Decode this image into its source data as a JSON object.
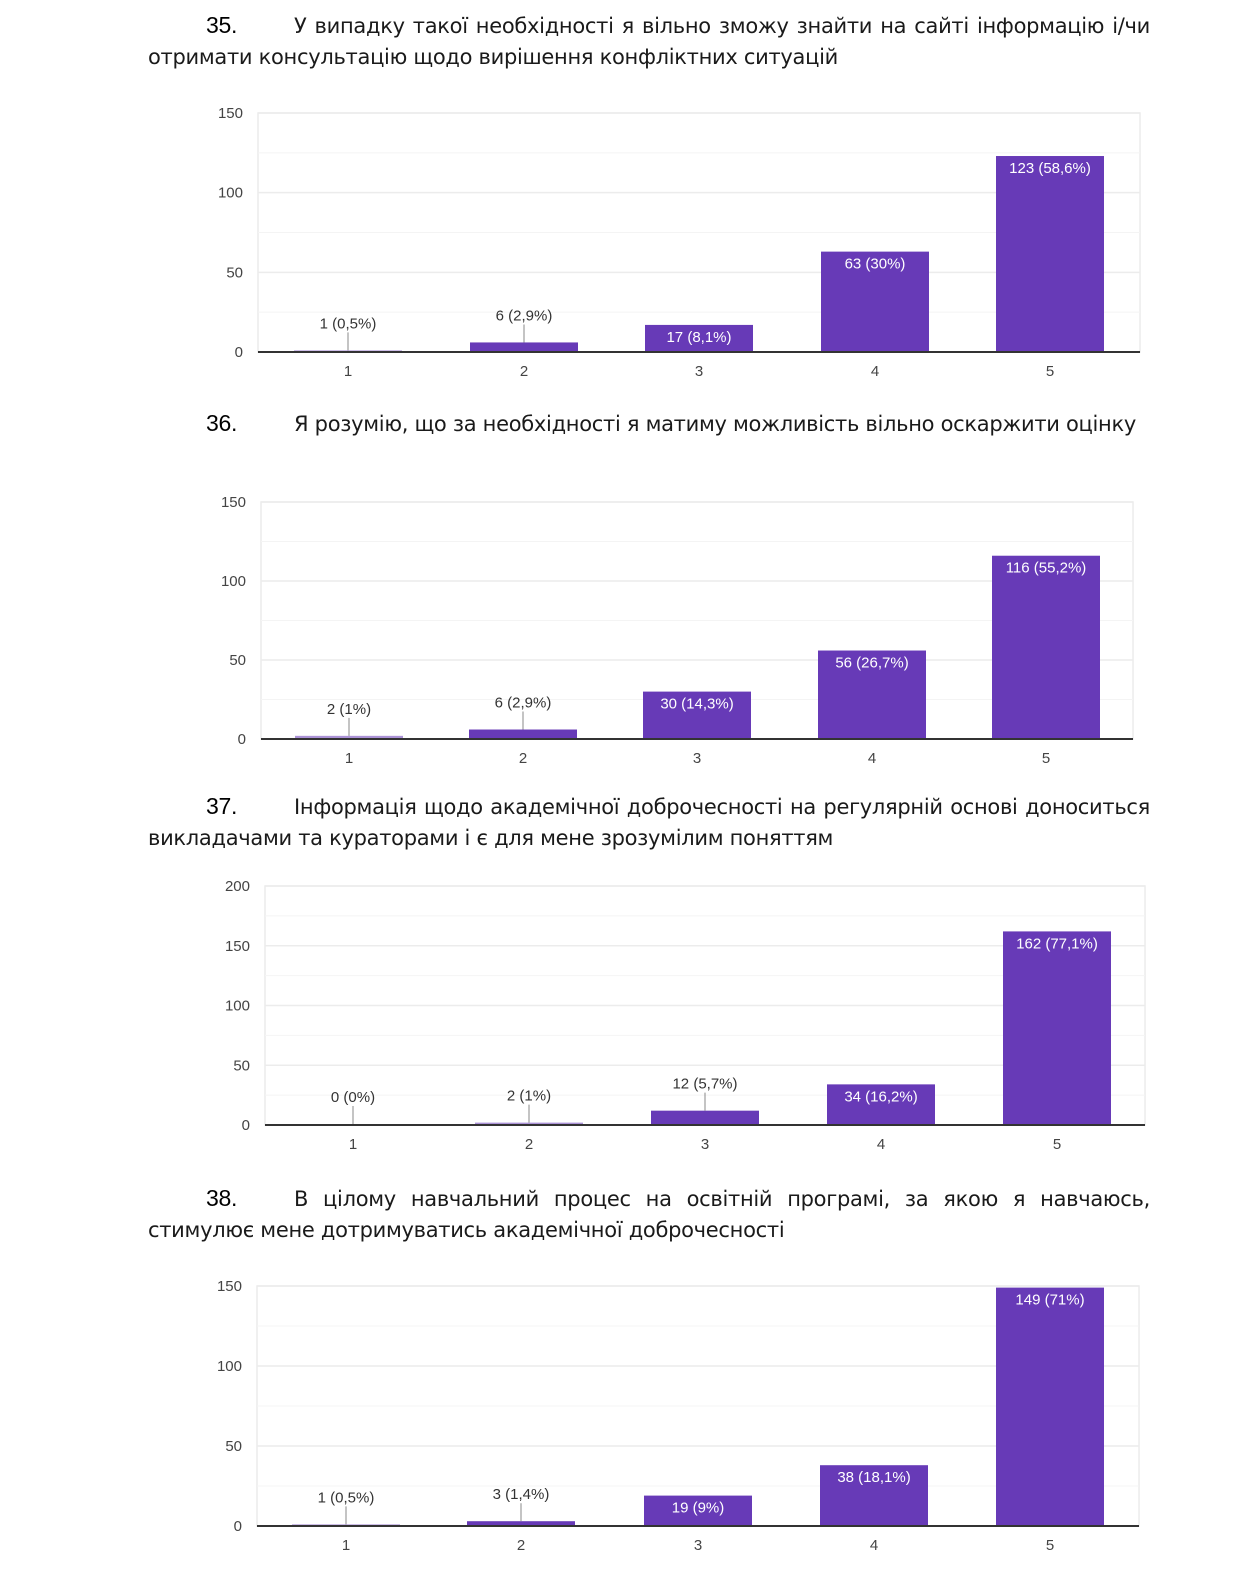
{
  "questions": [
    {
      "number": "35.",
      "text": "У випадку такої необхідності я вільно зможу знайти на сайті інформацію і/чи отримати консультацію щодо вирішення конфліктних ситуацій"
    },
    {
      "number": "36.",
      "text": "Я розумію, що за необхідності я матиму можливість вільно оскаржити оцінку"
    },
    {
      "number": "37.",
      "text": "Інформація щодо академічної доброчесності на регулярній основі доноситься викладачами та кураторами і є для мене зрозумілим поняттям"
    },
    {
      "number": "38.",
      "text": "В цілому навчальний процес на освітній програмі, за якою я навчаюсь, стимулює мене дотримуватись академічної доброчесності"
    }
  ],
  "colors": {
    "bar": "#673ab7",
    "grid": "#ececec",
    "axis": "#333333"
  },
  "chart_data": [
    {
      "type": "bar",
      "title": "35",
      "categories": [
        "1",
        "2",
        "3",
        "4",
        "5"
      ],
      "values": [
        1,
        6,
        17,
        63,
        123
      ],
      "labels": [
        "1 (0,5%)",
        "6 (2,9%)",
        "17 (8,1%)",
        "63 (30%)",
        "123 (58,6%)"
      ],
      "yticks": [
        "0",
        "50",
        "100",
        "150"
      ],
      "ylim": [
        0,
        150
      ],
      "grid": true,
      "xlabel": "",
      "ylabel": ""
    },
    {
      "type": "bar",
      "title": "36",
      "categories": [
        "1",
        "2",
        "3",
        "4",
        "5"
      ],
      "values": [
        2,
        6,
        30,
        56,
        116
      ],
      "labels": [
        "2 (1%)",
        "6 (2,9%)",
        "30 (14,3%)",
        "56 (26,7%)",
        "116 (55,2%)"
      ],
      "yticks": [
        "0",
        "50",
        "100",
        "150"
      ],
      "ylim": [
        0,
        150
      ],
      "grid": true,
      "xlabel": "",
      "ylabel": ""
    },
    {
      "type": "bar",
      "title": "37",
      "categories": [
        "1",
        "2",
        "3",
        "4",
        "5"
      ],
      "values": [
        0,
        2,
        12,
        34,
        162
      ],
      "labels": [
        "0 (0%)",
        "2 (1%)",
        "12 (5,7%)",
        "34 (16,2%)",
        "162 (77,1%)"
      ],
      "yticks": [
        "0",
        "50",
        "100",
        "150",
        "200"
      ],
      "ylim": [
        0,
        200
      ],
      "grid": true,
      "xlabel": "",
      "ylabel": ""
    },
    {
      "type": "bar",
      "title": "38",
      "categories": [
        "1",
        "2",
        "3",
        "4",
        "5"
      ],
      "values": [
        1,
        3,
        19,
        38,
        149
      ],
      "labels": [
        "1 (0,5%)",
        "3 (1,4%)",
        "19 (9%)",
        "38 (18,1%)",
        "149 (71%)"
      ],
      "yticks": [
        "0",
        "50",
        "100",
        "150"
      ],
      "ylim": [
        0,
        150
      ],
      "grid": true,
      "xlabel": "",
      "ylabel": ""
    }
  ]
}
